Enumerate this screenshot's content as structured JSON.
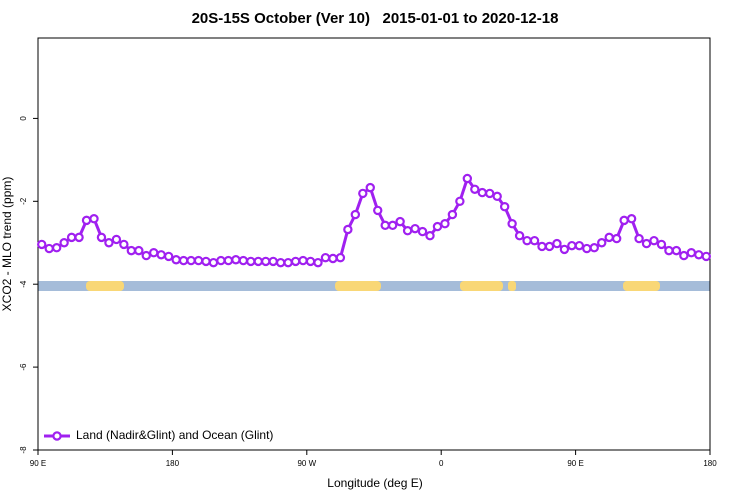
{
  "chart_data": {
    "type": "line",
    "title": "20S-15S October (Ver 10)   2015-01-01 to 2020-12-18",
    "xlabel": "Longitude (deg E)",
    "ylabel": "XCO2 - MLO trend (ppm)",
    "xlim": [
      90,
      540
    ],
    "ylim": [
      -8,
      1.94
    ],
    "xticks": [
      {
        "value": 90,
        "label": "90 E"
      },
      180,
      {
        "value": 270,
        "label": "90 W"
      },
      {
        "value": 360,
        "label": "0"
      },
      {
        "value": 450,
        "label": "90 E"
      },
      {
        "value": 540,
        "label": "180"
      }
    ],
    "yticks": [
      0,
      -2,
      -4,
      -6,
      -8
    ],
    "legend": "bottom-left",
    "x": [
      92.5,
      97.5,
      102.5,
      107.5,
      112.5,
      117.5,
      122.5,
      127.5,
      132.5,
      137.5,
      142.5,
      147.5,
      152.5,
      157.5,
      162.5,
      167.5,
      172.5,
      177.5,
      182.5,
      187.5,
      192.5,
      197.5,
      202.5,
      207.5,
      212.5,
      217.5,
      222.5,
      227.5,
      232.5,
      237.5,
      242.5,
      247.5,
      252.5,
      257.5,
      262.5,
      267.5,
      272.5,
      277.5,
      282.5,
      287.5,
      292.5,
      297.5,
      302.5,
      307.5,
      312.5,
      317.5,
      322.5,
      327.5,
      332.5,
      337.5,
      342.5,
      347.5,
      352.5,
      357.5,
      362.5,
      367.5,
      372.5,
      377.5,
      382.5,
      387.5,
      392.5,
      397.5,
      402.5,
      407.5,
      412.5,
      417.5,
      422.5,
      427.5,
      432.5,
      437.5,
      442.5,
      447.5,
      452.5,
      457.5,
      462.5,
      467.5,
      472.5,
      477.5,
      482.5,
      487.5,
      492.5,
      497.5,
      502.5,
      507.5,
      512.5,
      517.5,
      522.5,
      527.5,
      532.5,
      537.5
    ],
    "series": [
      {
        "name": "Land (Nadir&Glint) and Ocean (Glint)",
        "color": "#a020f0",
        "values": [
          -3.04,
          -3.14,
          -3.12,
          -3.0,
          -2.87,
          -2.87,
          -2.46,
          -2.42,
          -2.87,
          -3.0,
          -2.92,
          -3.04,
          -3.19,
          -3.19,
          -3.31,
          -3.24,
          -3.29,
          -3.33,
          -3.41,
          -3.43,
          -3.43,
          -3.43,
          -3.45,
          -3.48,
          -3.43,
          -3.43,
          -3.41,
          -3.43,
          -3.45,
          -3.45,
          -3.45,
          -3.45,
          -3.48,
          -3.48,
          -3.45,
          -3.43,
          -3.45,
          -3.48,
          -3.36,
          -3.38,
          -3.36,
          -2.68,
          -2.32,
          -1.81,
          -1.67,
          -2.22,
          -2.58,
          -2.58,
          -2.49,
          -2.71,
          -2.66,
          -2.73,
          -2.83,
          -2.61,
          -2.54,
          -2.32,
          -2.0,
          -1.45,
          -1.71,
          -1.79,
          -1.81,
          -1.88,
          -2.13,
          -2.54,
          -2.83,
          -2.95,
          -2.95,
          -3.09,
          -3.09,
          -3.02,
          -3.16,
          -3.07,
          -3.07,
          -3.14,
          -3.12,
          -3.0,
          -2.87,
          -2.9,
          -2.46,
          -2.42,
          -2.9,
          -3.02,
          -2.95,
          -3.04,
          -3.19,
          -3.19,
          -3.31,
          -3.24,
          -3.29,
          -3.33
        ]
      }
    ]
  }
}
